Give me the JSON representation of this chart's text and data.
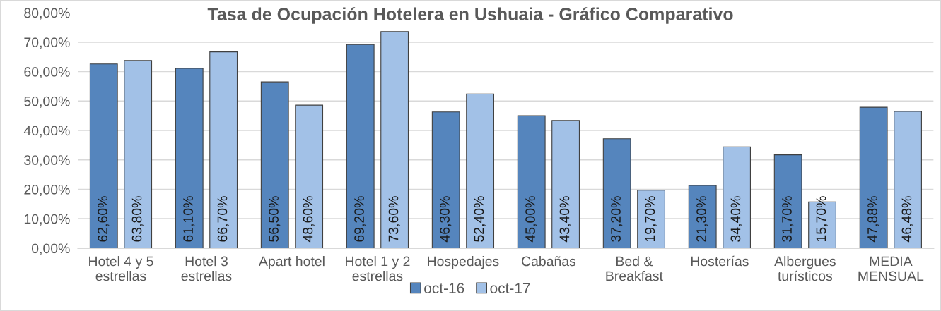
{
  "chart_data": {
    "type": "bar",
    "title": "Tasa de Ocupación Hotelera en Ushuaia - Gráfico Comparativo",
    "categories": [
      "Hotel 4 y 5\nestrellas",
      "Hotel 3\nestrellas",
      "Apart hotel",
      "Hotel 1 y 2\nestrellas",
      "Hospedajes",
      "Cabañas",
      "Bed &\nBreakfast",
      "Hosterías",
      "Albergues\nturísticos",
      "MEDIA\nMENSUAL"
    ],
    "series": [
      {
        "name": "oct-16",
        "color": "#5585bd",
        "values": [
          62.6,
          61.1,
          56.5,
          69.2,
          46.3,
          45.0,
          37.2,
          21.3,
          31.7,
          47.88
        ],
        "value_labels": [
          "62,60%",
          "61,10%",
          "56,50%",
          "69,20%",
          "46,30%",
          "45,00%",
          "37,20%",
          "21,30%",
          "31,70%",
          "47,88%"
        ]
      },
      {
        "name": "oct-17",
        "color": "#a2c1e7",
        "values": [
          63.8,
          66.7,
          48.6,
          73.6,
          52.4,
          43.4,
          19.7,
          34.4,
          15.7,
          46.48
        ],
        "value_labels": [
          "63,80%",
          "66,70%",
          "48,60%",
          "73,60%",
          "52,40%",
          "43,40%",
          "19,70%",
          "34,40%",
          "15,70%",
          "46,48%"
        ]
      }
    ],
    "ylim": [
      0,
      80
    ],
    "yticks": [
      {
        "value": 0,
        "label": "0,00%"
      },
      {
        "value": 10,
        "label": "10,00%"
      },
      {
        "value": 20,
        "label": "20,00%"
      },
      {
        "value": 30,
        "label": "30,00%"
      },
      {
        "value": 40,
        "label": "40,00%"
      },
      {
        "value": 50,
        "label": "50,00%"
      },
      {
        "value": 60,
        "label": "60,00%"
      },
      {
        "value": 70,
        "label": "70,00%"
      },
      {
        "value": 80,
        "label": "80,00%"
      }
    ],
    "grid": "y",
    "legend": "bottom"
  }
}
